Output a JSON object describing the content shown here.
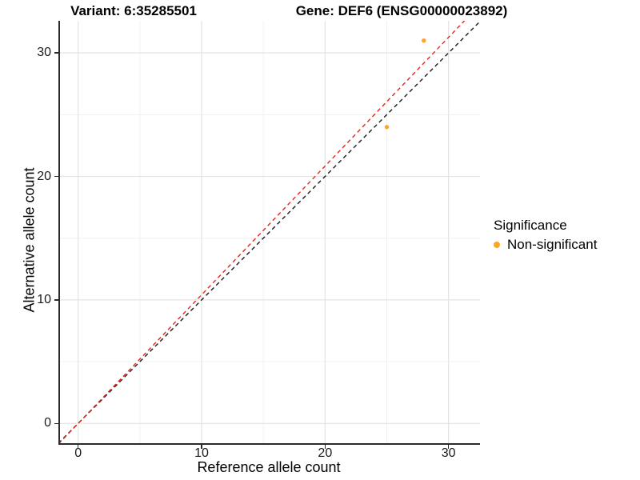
{
  "chart_data": {
    "type": "scatter",
    "title_left": "Variant: 6:35285501",
    "title_right": "Gene: DEF6 (ENSG00000023892)",
    "xlabel": "Reference allele count",
    "ylabel": "Alternative allele count",
    "xlim": [
      -1.6,
      32.55
    ],
    "ylim": [
      -1.6,
      32.6
    ],
    "x_major_ticks": [
      0,
      10,
      20,
      30
    ],
    "x_minor_ticks": [
      5,
      15,
      25
    ],
    "y_major_ticks": [
      0,
      10,
      20,
      30
    ],
    "y_minor_ticks": [
      5,
      15,
      25
    ],
    "grid": true,
    "legend_position": "right",
    "series": [
      {
        "name": "Non-significant",
        "color": "#FFA427",
        "marker": "circle",
        "points": [
          {
            "x": 25,
            "y": 24
          },
          {
            "x": 28,
            "y": 31
          }
        ]
      }
    ],
    "lines": [
      {
        "name": "identity-line",
        "slope": 1.0,
        "intercept": 0,
        "color": "#1a1a1a",
        "style": "dashed"
      },
      {
        "name": "fit-line",
        "slope": 1.042,
        "intercept": 0,
        "color": "#E8221C",
        "style": "dashed"
      }
    ],
    "colors": {
      "grid_major": "#E3E3E3",
      "grid_minor": "#F0F0F0",
      "axis_line": "#2b2b2b",
      "point": "#FFA427"
    },
    "legend": {
      "title": "Significance",
      "items": [
        {
          "label": "Non-significant",
          "color": "#FFA427",
          "marker": "circle"
        }
      ]
    }
  }
}
